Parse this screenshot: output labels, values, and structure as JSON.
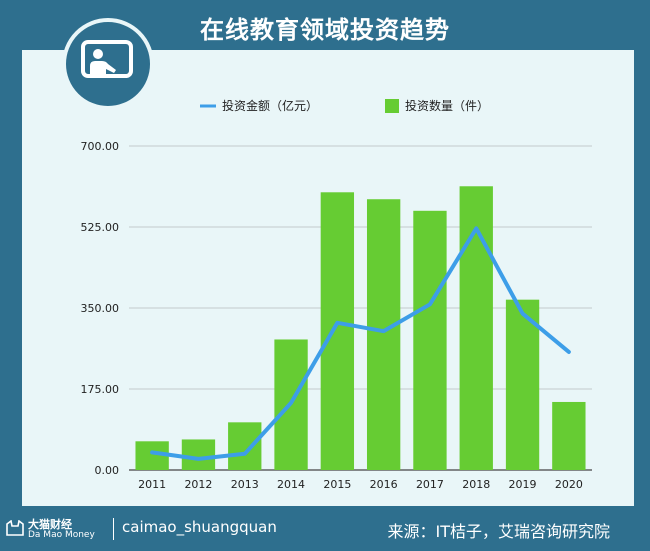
{
  "header": {
    "title": "在线教育领域投资趋势"
  },
  "footer": {
    "brand_cn": "大猫财经",
    "brand_en": "Da Mao Money",
    "handle": "caimao_shuangquan",
    "source": "来源：IT桔子，艾瑞咨询研究院"
  },
  "icons": {
    "logo": "teacher-board-icon",
    "brand": "cat-logo-icon"
  },
  "colors": {
    "bar": "#66cc33",
    "line": "#3d9ee8",
    "frame": "#2e6f8e",
    "panel": "#e9f6f8"
  },
  "chart_data": {
    "type": "bar",
    "categories": [
      "2011",
      "2012",
      "2013",
      "2014",
      "2015",
      "2016",
      "2017",
      "2018",
      "2019",
      "2020"
    ],
    "series": [
      {
        "name": "投资数量（件）",
        "type": "bar",
        "values": [
          62,
          66,
          103,
          282,
          600,
          585,
          560,
          613,
          368,
          147
        ]
      },
      {
        "name": "投资金额（亿元）",
        "type": "line",
        "values": [
          38,
          24,
          35,
          145,
          318,
          300,
          358,
          522,
          338,
          255
        ]
      }
    ],
    "yticks": [
      "0.00",
      "175.00",
      "350.00",
      "525.00",
      "700.00"
    ],
    "ylim": [
      0,
      700
    ],
    "grid": true,
    "legend_position": "top"
  }
}
